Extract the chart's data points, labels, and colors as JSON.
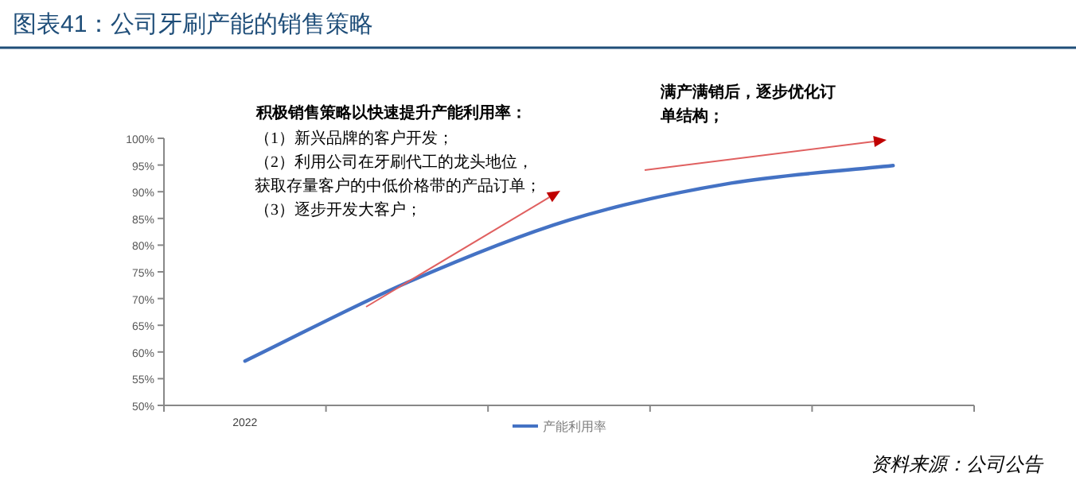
{
  "chart_data": {
    "type": "line",
    "title": "图表41：公司牙刷产能的销售策略",
    "categories": [
      "2022",
      null,
      null,
      null,
      null
    ],
    "series": [
      {
        "name": "产能利用率",
        "color": "#4472c4",
        "values": [
          58.3,
          73,
          84.7,
          91.6,
          94.9
        ]
      }
    ],
    "ylim": [
      50,
      100
    ],
    "yticks": [
      {
        "value": 50,
        "label": "50%"
      },
      {
        "value": 55,
        "label": "55%"
      },
      {
        "value": 60,
        "label": "60%"
      },
      {
        "value": 65,
        "label": "65%"
      },
      {
        "value": 70,
        "label": "70%"
      },
      {
        "value": 75,
        "label": "75%"
      },
      {
        "value": 80,
        "label": "80%"
      },
      {
        "value": 85,
        "label": "85%"
      },
      {
        "value": 90,
        "label": "90%"
      },
      {
        "value": 95,
        "label": "95%"
      },
      {
        "value": 100,
        "label": "100%"
      }
    ],
    "grid": false,
    "legend": "bottom",
    "marker": "none",
    "annotations": [
      "积极销售策略以快速提升产能利用率：",
      "（1）新兴品牌的客户开发；",
      "（2）利用公司在牙刷代工的龙头地位，",
      "获取存量客户的中低价格带的产品订单；",
      "（3）逐步开发大客户；",
      "满产满销后，逐步优化订",
      "单结构；",
      "资料来源：公司公告"
    ]
  }
}
